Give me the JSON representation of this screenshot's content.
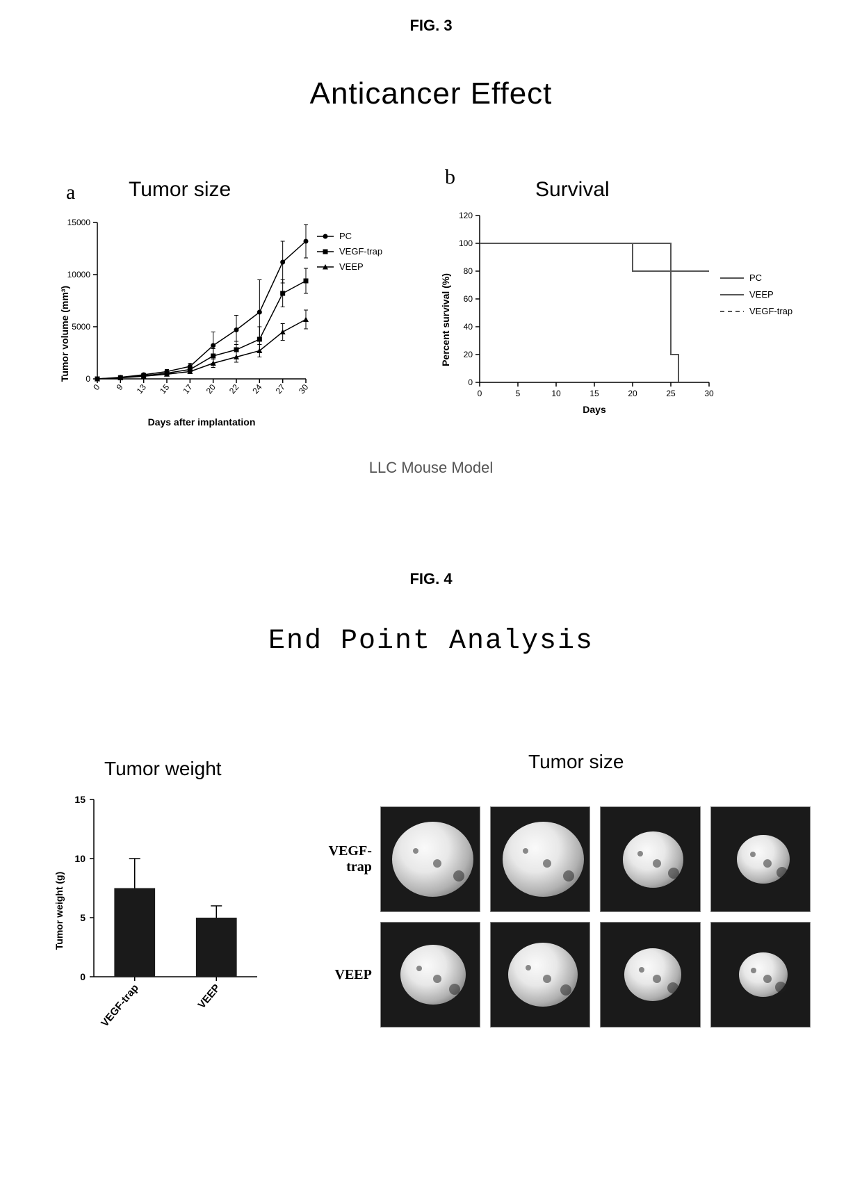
{
  "fig3": {
    "label": "FIG. 3",
    "title": "Anticancer Effect",
    "caption": "LLC Mouse Model",
    "panel_a": {
      "letter": "a",
      "title": "Tumor size",
      "type": "line",
      "xlabel": "Days after implantation",
      "ylabel": "Tumor volume (mm³)",
      "xticks": [
        "0",
        "9",
        "13",
        "15",
        "17",
        "20",
        "22",
        "24",
        "27",
        "30"
      ],
      "yticks": [
        "0",
        "5000",
        "10000",
        "15000"
      ],
      "ylim": [
        0,
        15000
      ],
      "xlim": [
        0,
        9
      ],
      "legend": [
        "PC",
        "VEGF-trap",
        "VEEP"
      ],
      "markers": [
        "circle",
        "square",
        "triangle"
      ],
      "line_color": "#000000",
      "background_color": "#ffffff",
      "series": {
        "PC": [
          0,
          150,
          400,
          700,
          1200,
          3200,
          4700,
          6400,
          11200,
          13200
        ],
        "VEGF-trap": [
          0,
          120,
          300,
          550,
          900,
          2200,
          2800,
          3800,
          8200,
          9400
        ],
        "VEEP": [
          0,
          100,
          250,
          450,
          700,
          1500,
          2100,
          2700,
          4500,
          5700
        ]
      },
      "error_bars": {
        "PC": [
          0,
          80,
          150,
          200,
          300,
          1300,
          1400,
          3100,
          2000,
          1600
        ],
        "VEGF-trap": [
          0,
          60,
          120,
          160,
          250,
          700,
          800,
          1200,
          1300,
          1200
        ],
        "VEEP": [
          0,
          50,
          100,
          140,
          200,
          400,
          500,
          600,
          800,
          900
        ]
      },
      "label_fontsize": 14,
      "tick_fontsize": 12,
      "axis_color": "#000000"
    },
    "panel_b": {
      "letter": "b",
      "title": "Survival",
      "type": "step-line",
      "xlabel": "Days",
      "ylabel": "Percent survival (%)",
      "xticks": [
        "0",
        "5",
        "10",
        "15",
        "20",
        "25",
        "30"
      ],
      "yticks": [
        "0",
        "20",
        "40",
        "60",
        "80",
        "100",
        "120"
      ],
      "xlim": [
        0,
        30
      ],
      "ylim": [
        0,
        120
      ],
      "legend": [
        "PC",
        "VEEP",
        "VEGF-trap"
      ],
      "line_styles": [
        "solid",
        "solid",
        "dashed"
      ],
      "line_color": "#555555",
      "background_color": "#ffffff",
      "axis_color": "#000000",
      "series": {
        "PC": [
          [
            0,
            100
          ],
          [
            20,
            100
          ],
          [
            20,
            80
          ],
          [
            25,
            80
          ],
          [
            25,
            20
          ],
          [
            26,
            20
          ],
          [
            26,
            0
          ]
        ],
        "VEEP": [
          [
            0,
            100
          ],
          [
            25,
            100
          ],
          [
            25,
            80
          ],
          [
            30,
            80
          ]
        ],
        "VEGF-trap": [
          [
            0,
            100
          ],
          [
            25,
            100
          ],
          [
            25,
            80
          ],
          [
            30,
            80
          ]
        ]
      },
      "label_fontsize": 14,
      "tick_fontsize": 12
    }
  },
  "fig4": {
    "label": "FIG. 4",
    "title": "End Point Analysis",
    "panel_a": {
      "title": "Tumor weight",
      "type": "bar",
      "xlabel": "",
      "ylabel": "Tumor weight (g)",
      "categories": [
        "VEGF-trap",
        "VEEP"
      ],
      "values": [
        7.5,
        5.0
      ],
      "errors": [
        2.5,
        1.0
      ],
      "yticks": [
        "0",
        "5",
        "10",
        "15"
      ],
      "ylim": [
        0,
        15
      ],
      "bar_color": "#1a1a1a",
      "bar_width": 0.5,
      "axis_color": "#000000",
      "background_color": "#ffffff",
      "label_fontsize": 14,
      "tick_fontsize": 13
    },
    "panel_b": {
      "title": "Tumor size",
      "type": "photo-grid",
      "row_labels": [
        "VEGF-trap",
        "VEEP"
      ],
      "cols": 4,
      "cell_bg": "#1a1a1a",
      "photo_border": "#888888",
      "sizes": {
        "VEGF-trap": [
          1.0,
          1.0,
          0.75,
          0.65
        ],
        "VEEP": [
          0.8,
          0.85,
          0.7,
          0.6
        ]
      }
    }
  }
}
